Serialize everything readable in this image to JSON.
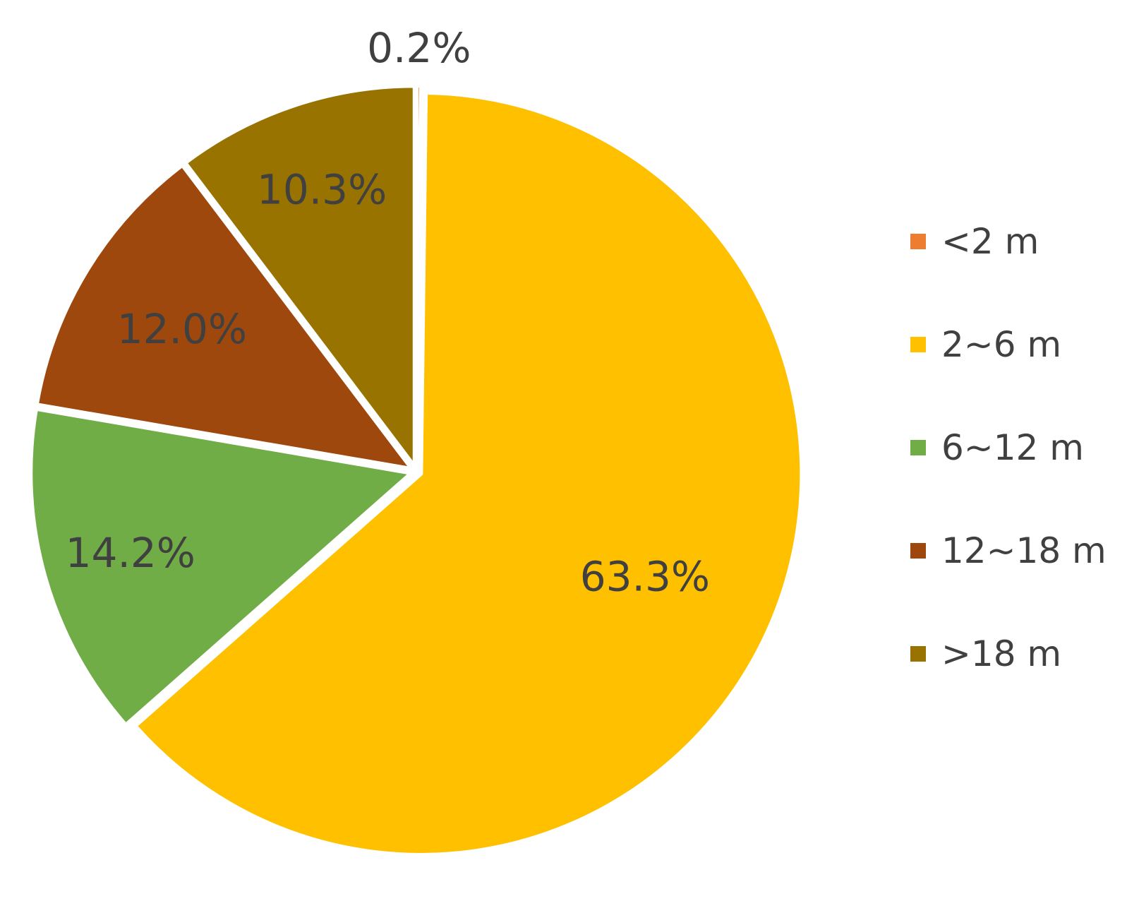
{
  "chart_data": {
    "type": "pie",
    "categories": [
      "<2 m",
      "2~6 m",
      "6~12 m",
      "12~18 m",
      ">18 m"
    ],
    "values": [
      0.2,
      63.3,
      14.2,
      12.0,
      10.3
    ],
    "data_labels": [
      "0.2%",
      "63.3%",
      "14.2%",
      "12.0%",
      "10.3%"
    ],
    "colors": [
      "#ED7D31",
      "#FFC000",
      "#70AD47",
      "#9E480E",
      "#997300"
    ],
    "label_color": "#404040",
    "legend_position": "right",
    "start_angle": "top",
    "direction": "clockwise",
    "exploded": true
  }
}
